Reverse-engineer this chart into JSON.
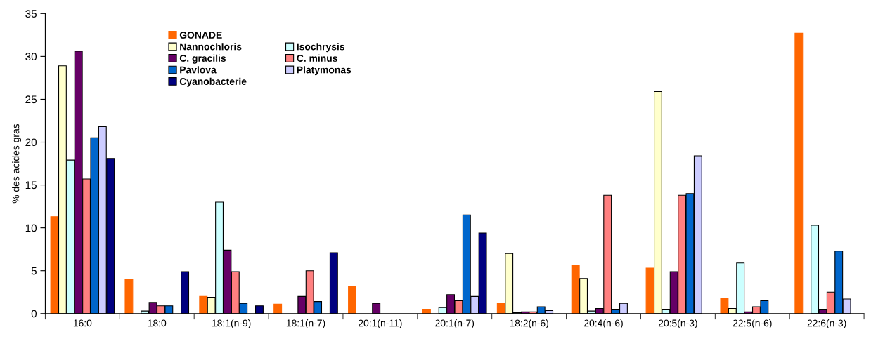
{
  "chart_data": {
    "type": "bar",
    "ylabel": "% des acides gras",
    "categories": [
      "16:0",
      "18:0",
      "18:1(n-9)",
      "18:1(n-7)",
      "20:1(n-11)",
      "20:1(n-7)",
      "18:2(n-6)",
      "20:4(n-6)",
      "20:5(n-3)",
      "22:5(n-6)",
      "22:6(n-3)"
    ],
    "series": [
      {
        "name": "GONADE",
        "color": "#ff6600",
        "values": [
          11.3,
          4.0,
          2.0,
          1.1,
          3.2,
          0.5,
          1.2,
          5.6,
          5.3,
          1.8,
          32.7
        ]
      },
      {
        "name": "Nannochloris",
        "color": "#ffffcc",
        "values": [
          28.9,
          null,
          1.9,
          null,
          null,
          null,
          7.0,
          4.1,
          25.9,
          0.6,
          null
        ]
      },
      {
        "name": "Isochrysis",
        "color": "#ccffff",
        "values": [
          17.9,
          0.3,
          13.0,
          null,
          null,
          0.7,
          0.1,
          0.3,
          0.5,
          5.9,
          10.3
        ]
      },
      {
        "name": "C. gracilis",
        "color": "#660066",
        "values": [
          30.6,
          1.3,
          7.4,
          2.0,
          1.2,
          2.2,
          0.2,
          0.6,
          4.9,
          0.2,
          0.5
        ]
      },
      {
        "name": "C. minus",
        "color": "#ff8080",
        "values": [
          15.7,
          0.9,
          4.9,
          5.0,
          null,
          1.5,
          0.2,
          13.8,
          13.8,
          0.8,
          2.5
        ]
      },
      {
        "name": "Pavlova",
        "color": "#0066cc",
        "values": [
          20.5,
          0.9,
          1.2,
          1.4,
          null,
          11.5,
          0.8,
          0.5,
          14.0,
          1.5,
          7.3
        ]
      },
      {
        "name": "Platymonas",
        "color": "#ccccff",
        "values": [
          21.8,
          null,
          null,
          null,
          null,
          2.0,
          0.35,
          1.2,
          18.4,
          null,
          1.7
        ]
      },
      {
        "name": "Cyanobacterie",
        "color": "#000080",
        "values": [
          18.1,
          4.9,
          0.9,
          7.1,
          null,
          9.4,
          null,
          null,
          null,
          null,
          null
        ]
      }
    ],
    "ylim": [
      0,
      35
    ],
    "yticks": [
      0,
      5,
      10,
      15,
      20,
      25,
      30,
      35
    ],
    "grid": false,
    "legend": "top left"
  }
}
